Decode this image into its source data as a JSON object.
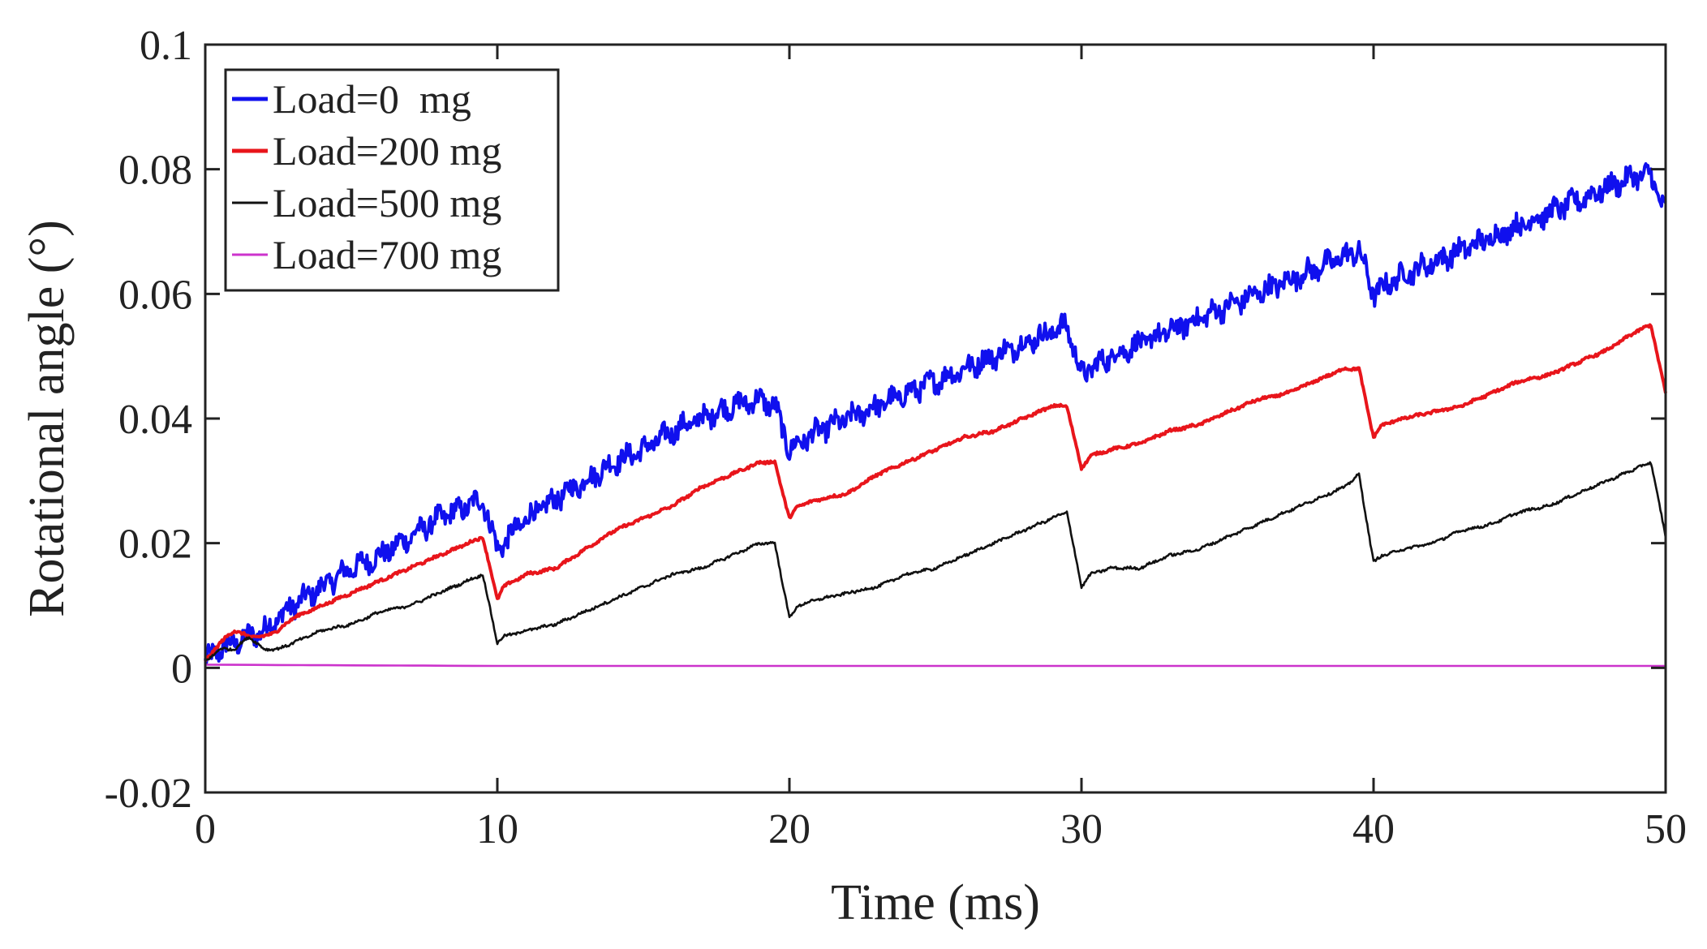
{
  "chart_data": {
    "type": "line",
    "title": "",
    "xlabel": "Time (ms)",
    "ylabel": "Rotational angle (°)",
    "xlim": [
      0,
      50
    ],
    "ylim": [
      -0.02,
      0.1
    ],
    "x_ticks": [
      0,
      10,
      20,
      30,
      40,
      50
    ],
    "x_tick_labels": [
      "0",
      "10",
      "20",
      "30",
      "40",
      "50"
    ],
    "y_ticks": [
      -0.02,
      0,
      0.02,
      0.04,
      0.06,
      0.08,
      0.1
    ],
    "y_tick_labels": [
      "-0.02",
      "0",
      "0.02",
      "0.04",
      "0.06",
      "0.08",
      "0.1"
    ],
    "grid": false,
    "legend_position": "top-left",
    "period_ms": 10,
    "series": [
      {
        "name": "Load=0  mg",
        "color": "#1010ee",
        "noise": 0.0016,
        "x": [
          0,
          0.5,
          1,
          1.5,
          2,
          2.5,
          3,
          4,
          5,
          6,
          7,
          8,
          9,
          9.5,
          10,
          10.2,
          11,
          12,
          13,
          14,
          15,
          16,
          17,
          18,
          19,
          19.5,
          20,
          20.3,
          21,
          22,
          23,
          24,
          25,
          26,
          27,
          28,
          29,
          29.5,
          30,
          30.3,
          31,
          32,
          33,
          34,
          35,
          36,
          37,
          38,
          39,
          39.5,
          40,
          40.3,
          41,
          42,
          43,
          44,
          45,
          46,
          47,
          48,
          49,
          49.5,
          50
        ],
        "y": [
          0.001,
          0.003,
          0.004,
          0.005,
          0.006,
          0.008,
          0.01,
          0.013,
          0.016,
          0.018,
          0.021,
          0.024,
          0.026,
          0.027,
          0.019,
          0.02,
          0.024,
          0.027,
          0.03,
          0.033,
          0.035,
          0.038,
          0.04,
          0.042,
          0.043,
          0.042,
          0.035,
          0.036,
          0.038,
          0.04,
          0.042,
          0.044,
          0.046,
          0.048,
          0.05,
          0.052,
          0.054,
          0.055,
          0.047,
          0.048,
          0.05,
          0.052,
          0.054,
          0.056,
          0.058,
          0.06,
          0.062,
          0.064,
          0.066,
          0.067,
          0.06,
          0.061,
          0.063,
          0.065,
          0.067,
          0.069,
          0.071,
          0.073,
          0.075,
          0.077,
          0.079,
          0.079,
          0.073
        ]
      },
      {
        "name": "Load=200 mg",
        "color": "#e8151b",
        "noise": 0.0002,
        "x": [
          0,
          0.5,
          1,
          1.5,
          2,
          2.5,
          3,
          4,
          5,
          6,
          7,
          8,
          9,
          9.5,
          10,
          10.2,
          11,
          12,
          13,
          14,
          15,
          16,
          17,
          18,
          19,
          19.5,
          20,
          20.3,
          21,
          22,
          23,
          24,
          25,
          26,
          27,
          28,
          29,
          29.5,
          30,
          30.3,
          31,
          32,
          33,
          34,
          35,
          36,
          37,
          38,
          39,
          39.5,
          40,
          40.3,
          41,
          42,
          43,
          44,
          45,
          46,
          47,
          48,
          49,
          49.5,
          50
        ],
        "y": [
          0.001,
          0.004,
          0.006,
          0.005,
          0.005,
          0.006,
          0.008,
          0.01,
          0.012,
          0.014,
          0.016,
          0.018,
          0.02,
          0.021,
          0.011,
          0.013,
          0.015,
          0.016,
          0.019,
          0.022,
          0.024,
          0.026,
          0.029,
          0.031,
          0.033,
          0.033,
          0.024,
          0.026,
          0.027,
          0.028,
          0.031,
          0.033,
          0.035,
          0.037,
          0.038,
          0.04,
          0.042,
          0.042,
          0.032,
          0.034,
          0.035,
          0.036,
          0.038,
          0.039,
          0.041,
          0.043,
          0.044,
          0.046,
          0.048,
          0.048,
          0.037,
          0.039,
          0.04,
          0.041,
          0.042,
          0.044,
          0.046,
          0.047,
          0.049,
          0.051,
          0.054,
          0.055,
          0.044
        ]
      },
      {
        "name": "Load=500 mg",
        "color": "#111111",
        "noise": 0.0002,
        "x": [
          0,
          0.5,
          1,
          1.5,
          2,
          2.5,
          3,
          4,
          5,
          6,
          7,
          8,
          9,
          9.5,
          10,
          10.2,
          11,
          12,
          13,
          14,
          15,
          16,
          17,
          18,
          19,
          19.5,
          20,
          20.3,
          21,
          22,
          23,
          24,
          25,
          26,
          27,
          28,
          29,
          29.5,
          30,
          30.3,
          31,
          32,
          33,
          34,
          35,
          36,
          37,
          38,
          39,
          39.5,
          40,
          40.3,
          41,
          42,
          43,
          44,
          45,
          46,
          47,
          48,
          49,
          49.5,
          50
        ],
        "y": [
          0.001,
          0.003,
          0.003,
          0.005,
          0.003,
          0.003,
          0.004,
          0.006,
          0.007,
          0.009,
          0.01,
          0.012,
          0.014,
          0.015,
          0.004,
          0.005,
          0.006,
          0.007,
          0.009,
          0.011,
          0.013,
          0.015,
          0.016,
          0.018,
          0.02,
          0.02,
          0.008,
          0.01,
          0.011,
          0.012,
          0.013,
          0.015,
          0.016,
          0.018,
          0.02,
          0.022,
          0.024,
          0.025,
          0.013,
          0.015,
          0.016,
          0.016,
          0.018,
          0.019,
          0.021,
          0.023,
          0.025,
          0.027,
          0.029,
          0.031,
          0.017,
          0.018,
          0.019,
          0.02,
          0.022,
          0.023,
          0.025,
          0.026,
          0.028,
          0.03,
          0.032,
          0.033,
          0.021
        ]
      },
      {
        "name": "Load=700 mg",
        "color": "#cc33cc",
        "noise": 0,
        "x": [
          0,
          10,
          20,
          30,
          40,
          50
        ],
        "y": [
          0.0005,
          0.0003,
          0.0003,
          0.0003,
          0.0003,
          0.0003
        ]
      }
    ]
  }
}
